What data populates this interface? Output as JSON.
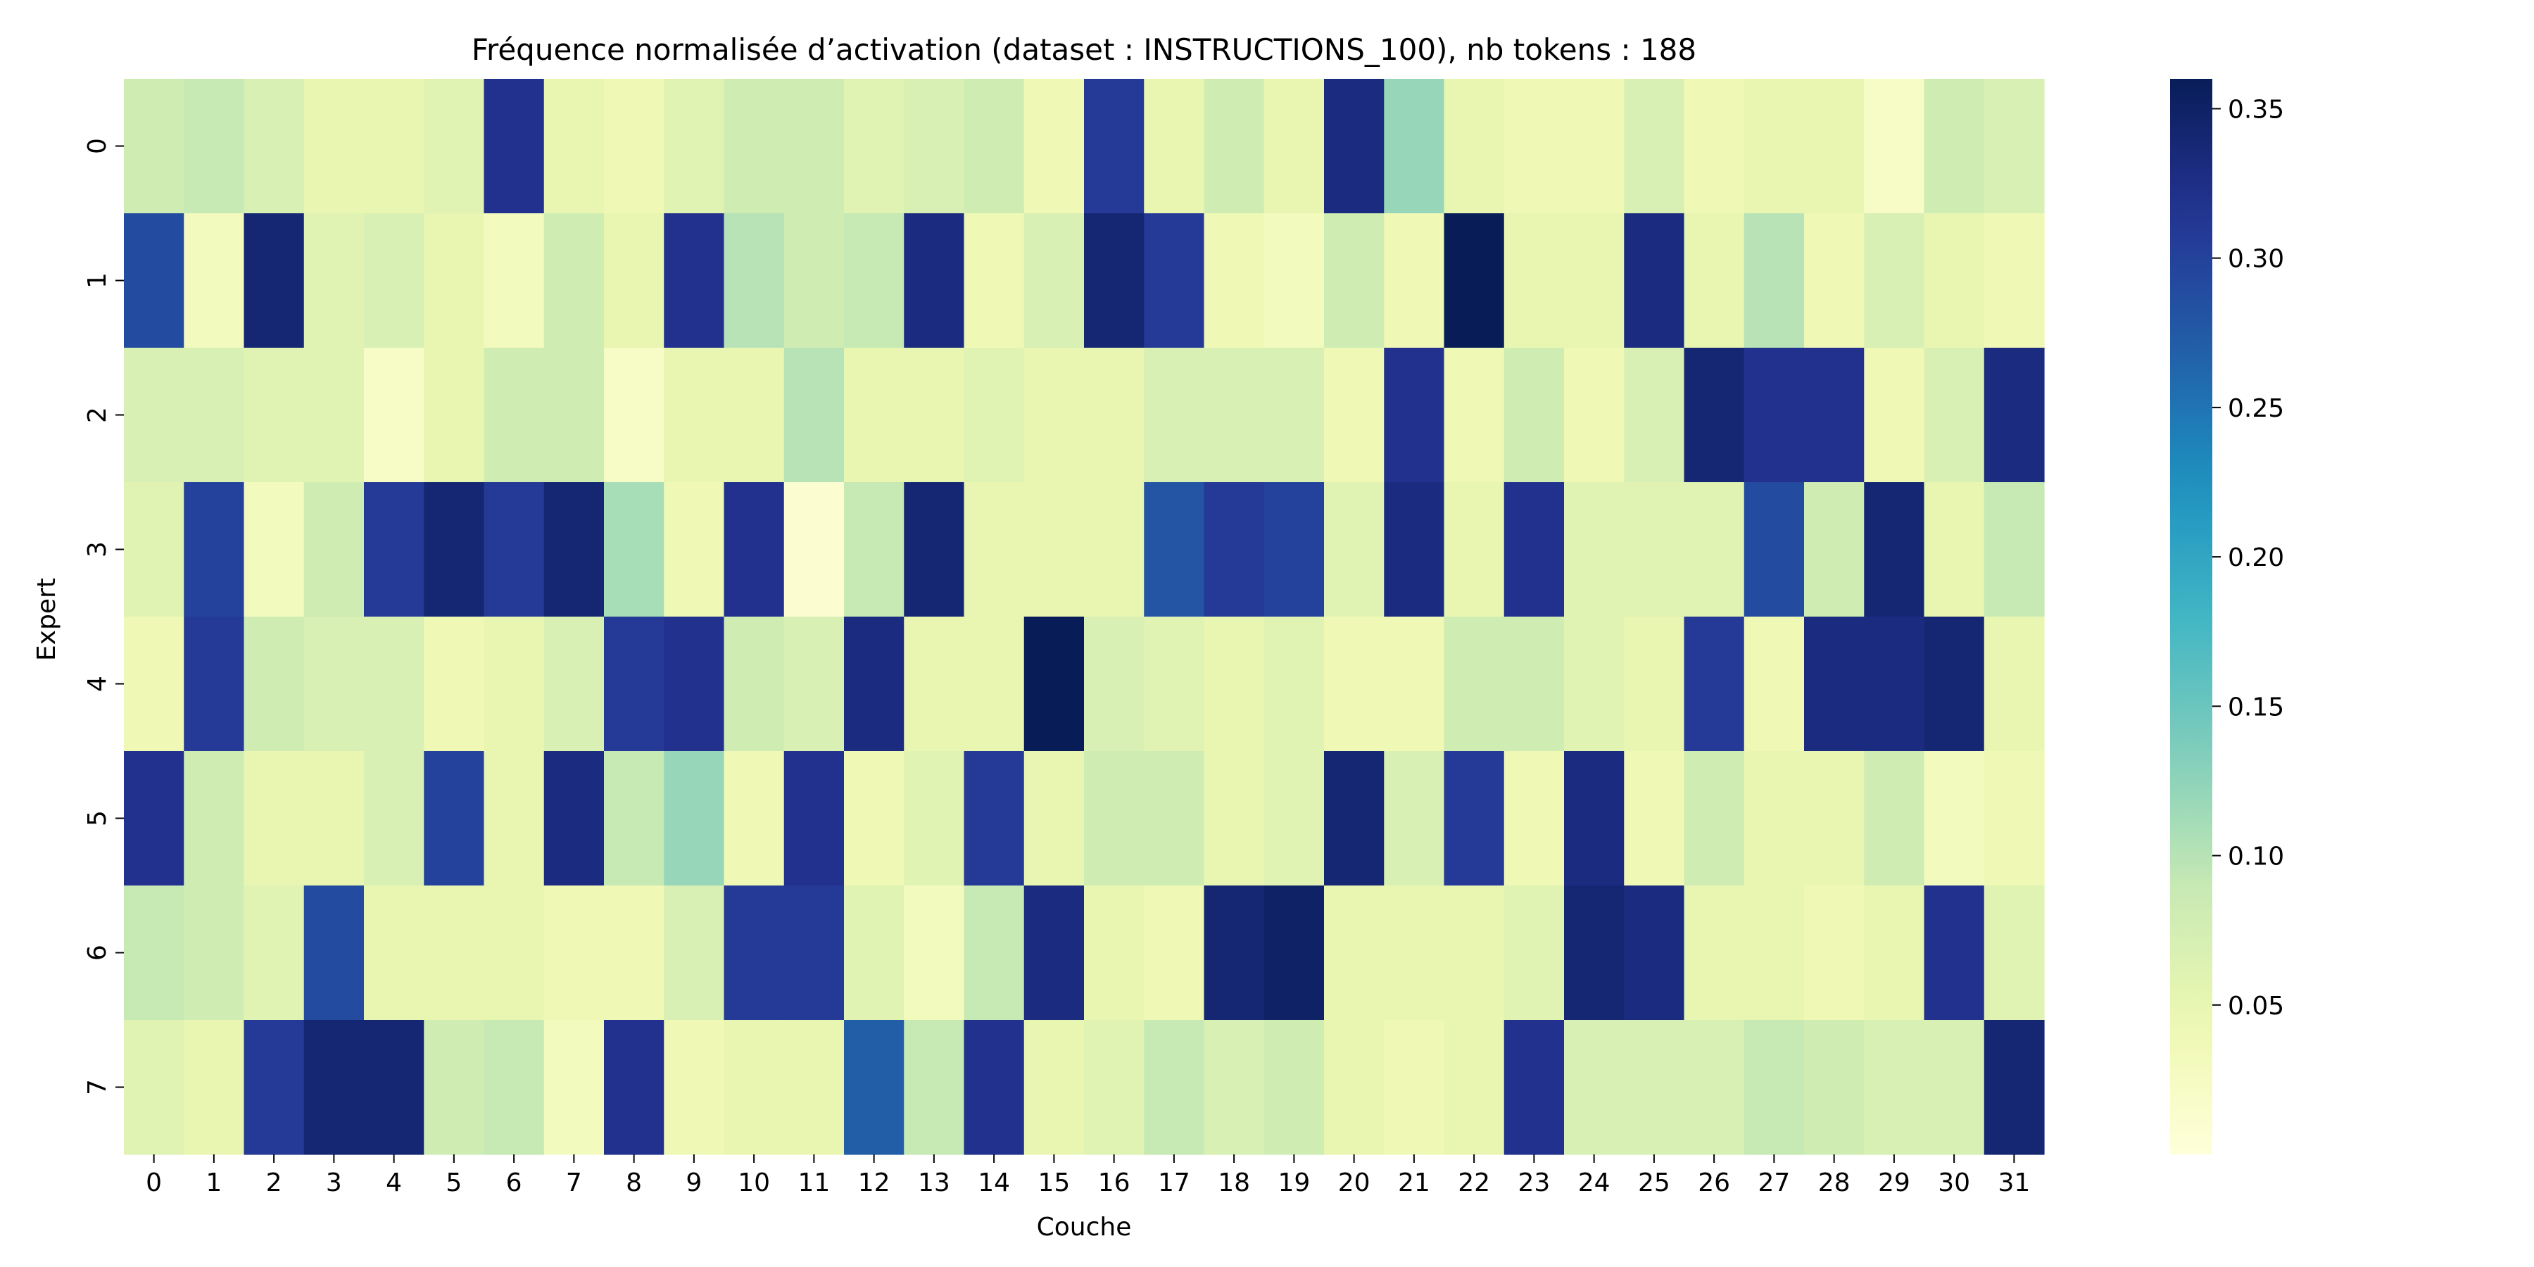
{
  "chart_data": {
    "type": "heatmap",
    "title": "Fréquence normalisée d’activation (dataset : INSTRUCTIONS_100), nb tokens : 188",
    "xlabel": "Couche",
    "ylabel": "Expert",
    "x_categories": [
      "0",
      "1",
      "2",
      "3",
      "4",
      "5",
      "6",
      "7",
      "8",
      "9",
      "10",
      "11",
      "12",
      "13",
      "14",
      "15",
      "16",
      "17",
      "18",
      "19",
      "20",
      "21",
      "22",
      "23",
      "24",
      "25",
      "26",
      "27",
      "28",
      "29",
      "30",
      "31"
    ],
    "y_categories": [
      "0",
      "1",
      "2",
      "3",
      "4",
      "5",
      "6",
      "7"
    ],
    "values": [
      [
        0.08,
        0.09,
        0.07,
        0.05,
        0.05,
        0.06,
        0.32,
        0.05,
        0.04,
        0.06,
        0.08,
        0.08,
        0.06,
        0.07,
        0.08,
        0.04,
        0.31,
        0.05,
        0.08,
        0.05,
        0.33,
        0.12,
        0.05,
        0.04,
        0.04,
        0.07,
        0.04,
        0.05,
        0.05,
        0.02,
        0.08,
        0.07
      ],
      [
        0.29,
        0.03,
        0.34,
        0.06,
        0.07,
        0.05,
        0.03,
        0.08,
        0.05,
        0.32,
        0.1,
        0.08,
        0.09,
        0.33,
        0.04,
        0.07,
        0.34,
        0.31,
        0.04,
        0.03,
        0.08,
        0.04,
        0.36,
        0.05,
        0.05,
        0.33,
        0.05,
        0.1,
        0.04,
        0.07,
        0.05,
        0.04
      ],
      [
        0.07,
        0.07,
        0.06,
        0.06,
        0.02,
        0.05,
        0.08,
        0.08,
        0.02,
        0.05,
        0.05,
        0.1,
        0.05,
        0.05,
        0.06,
        0.05,
        0.05,
        0.07,
        0.07,
        0.07,
        0.04,
        0.32,
        0.04,
        0.08,
        0.04,
        0.07,
        0.34,
        0.32,
        0.32,
        0.04,
        0.07,
        0.33
      ],
      [
        0.06,
        0.3,
        0.03,
        0.08,
        0.31,
        0.34,
        0.31,
        0.34,
        0.11,
        0.04,
        0.32,
        0.01,
        0.09,
        0.34,
        0.05,
        0.05,
        0.05,
        0.28,
        0.31,
        0.3,
        0.06,
        0.33,
        0.05,
        0.32,
        0.06,
        0.06,
        0.06,
        0.29,
        0.08,
        0.34,
        0.05,
        0.09
      ],
      [
        0.04,
        0.31,
        0.08,
        0.07,
        0.07,
        0.04,
        0.05,
        0.07,
        0.31,
        0.32,
        0.08,
        0.07,
        0.33,
        0.05,
        0.05,
        0.36,
        0.07,
        0.06,
        0.05,
        0.06,
        0.04,
        0.04,
        0.08,
        0.08,
        0.06,
        0.05,
        0.31,
        0.04,
        0.33,
        0.33,
        0.34,
        0.05
      ],
      [
        0.32,
        0.08,
        0.05,
        0.05,
        0.07,
        0.3,
        0.05,
        0.33,
        0.09,
        0.12,
        0.04,
        0.32,
        0.04,
        0.06,
        0.31,
        0.05,
        0.08,
        0.08,
        0.05,
        0.06,
        0.34,
        0.07,
        0.31,
        0.04,
        0.33,
        0.04,
        0.08,
        0.05,
        0.05,
        0.08,
        0.03,
        0.04
      ],
      [
        0.09,
        0.08,
        0.06,
        0.29,
        0.05,
        0.05,
        0.05,
        0.04,
        0.04,
        0.07,
        0.31,
        0.31,
        0.06,
        0.03,
        0.09,
        0.33,
        0.05,
        0.04,
        0.34,
        0.35,
        0.05,
        0.05,
        0.05,
        0.06,
        0.34,
        0.33,
        0.05,
        0.05,
        0.04,
        0.05,
        0.32,
        0.06
      ],
      [
        0.06,
        0.05,
        0.31,
        0.34,
        0.34,
        0.08,
        0.09,
        0.03,
        0.32,
        0.04,
        0.05,
        0.05,
        0.27,
        0.09,
        0.32,
        0.05,
        0.06,
        0.09,
        0.07,
        0.08,
        0.05,
        0.04,
        0.05,
        0.32,
        0.07,
        0.07,
        0.07,
        0.09,
        0.08,
        0.07,
        0.07,
        0.34
      ]
    ],
    "vmin": 0.0,
    "vmax": 0.36,
    "colormap": "YlGnBu",
    "colorbar_ticks": [
      "0.05",
      "0.10",
      "0.15",
      "0.20",
      "0.25",
      "0.30",
      "0.35"
    ],
    "colorbar_tick_values": [
      0.05,
      0.1,
      0.15,
      0.2,
      0.25,
      0.3,
      0.35
    ],
    "grid": false
  }
}
